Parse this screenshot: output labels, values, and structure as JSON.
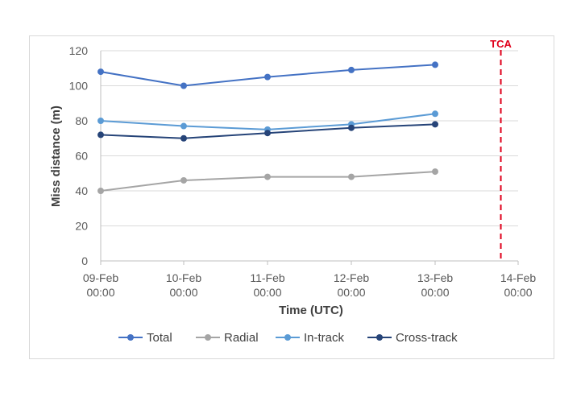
{
  "chart_data": {
    "type": "line",
    "title": "",
    "xlabel": "Time (UTC)",
    "ylabel": "Miss distance (m)",
    "ylim": [
      0,
      120
    ],
    "yticks": [
      0,
      20,
      40,
      60,
      80,
      100,
      120
    ],
    "x_ticks": [
      {
        "date": "09-Feb",
        "time": "00:00"
      },
      {
        "date": "10-Feb",
        "time": "00:00"
      },
      {
        "date": "11-Feb",
        "time": "00:00"
      },
      {
        "date": "12-Feb",
        "time": "00:00"
      },
      {
        "date": "13-Feb",
        "time": "00:00"
      },
      {
        "date": "14-Feb",
        "time": "00:00"
      }
    ],
    "x": [
      "09-Feb 00:00",
      "10-Feb 00:00",
      "11-Feb 00:00",
      "12-Feb 00:00",
      "13-Feb 00:00"
    ],
    "series": [
      {
        "name": "Total",
        "color": "#4472c4",
        "values": [
          108,
          100,
          105,
          109,
          112
        ]
      },
      {
        "name": "Radial",
        "color": "#a5a5a5",
        "values": [
          40,
          46,
          48,
          48,
          51
        ]
      },
      {
        "name": "In-track",
        "color": "#5b9bd5",
        "values": [
          80,
          77,
          75,
          78,
          84
        ]
      },
      {
        "name": "Cross-track",
        "color": "#264478",
        "values": [
          72,
          70,
          73,
          76,
          78
        ]
      }
    ],
    "annotation": {
      "label": "TCA",
      "x": "13-Feb 19:00",
      "color": "#e0001b"
    },
    "grid": true,
    "legend": "bottom"
  }
}
